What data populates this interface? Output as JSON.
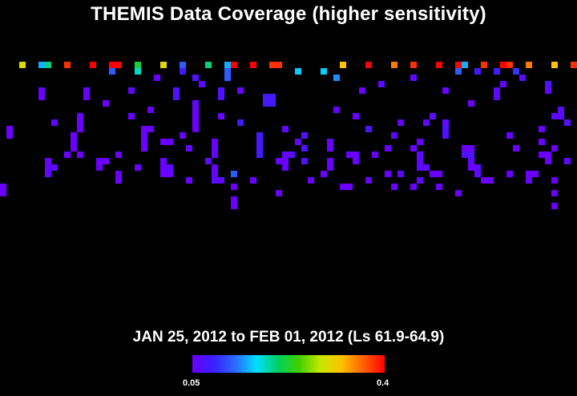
{
  "title": "THEMIS Data Coverage (higher sensitivity)",
  "date_range": "JAN 25, 2012 to FEB 01, 2012 (Ls 61.9-64.9)",
  "colorbar": {
    "min_label": "0.05",
    "max_label": "0.4",
    "min": 0.05,
    "max": 0.4,
    "colors": [
      "#6a00ff",
      "#3a20ff",
      "#2a6aff",
      "#00e0ff",
      "#00d060",
      "#40d000",
      "#c8e800",
      "#ffc000",
      "#ff6000",
      "#ff0000"
    ]
  },
  "chart_data": {
    "type": "heatmap",
    "grid": {
      "cols": 90,
      "rows": 33,
      "col_width": 8,
      "row_height": 8
    },
    "value_range": [
      0.05,
      0.4
    ],
    "cells": [
      [
        3,
        10,
        0.3
      ],
      [
        6,
        10,
        0.15
      ],
      [
        7,
        10,
        0.2
      ],
      [
        10,
        10,
        0.38
      ],
      [
        14,
        10,
        0.4
      ],
      [
        17,
        10,
        0.4
      ],
      [
        18,
        10,
        0.4
      ],
      [
        21,
        10,
        0.22
      ],
      [
        25,
        10,
        0.3
      ],
      [
        28,
        10,
        0.12
      ],
      [
        32,
        10,
        0.2
      ],
      [
        35,
        10,
        0.15
      ],
      [
        36,
        10,
        0.4
      ],
      [
        39,
        10,
        0.4
      ],
      [
        42,
        10,
        0.38
      ],
      [
        43,
        10,
        0.38
      ],
      [
        53,
        10,
        0.32
      ],
      [
        57,
        10,
        0.4
      ],
      [
        61,
        10,
        0.35
      ],
      [
        64,
        10,
        0.38
      ],
      [
        68,
        10,
        0.4
      ],
      [
        71,
        10,
        0.4
      ],
      [
        72,
        10,
        0.15
      ],
      [
        75,
        10,
        0.38
      ],
      [
        78,
        10,
        0.4
      ],
      [
        79,
        10,
        0.38
      ],
      [
        82,
        10,
        0.35
      ],
      [
        86,
        10,
        0.32
      ],
      [
        89,
        10,
        0.38
      ],
      [
        17,
        11,
        0.12
      ],
      [
        21,
        11,
        0.18
      ],
      [
        28,
        11,
        0.08
      ],
      [
        35,
        11,
        0.12
      ],
      [
        46,
        11,
        0.16
      ],
      [
        50,
        11,
        0.16
      ],
      [
        71,
        11,
        0.12
      ],
      [
        74,
        11,
        0.08
      ],
      [
        77,
        11,
        0.08
      ],
      [
        80,
        11,
        0.1
      ],
      [
        24,
        12,
        0.05
      ],
      [
        30,
        12,
        0.07
      ],
      [
        35,
        12,
        0.12
      ],
      [
        52,
        12,
        0.14
      ],
      [
        64,
        12,
        0.06
      ],
      [
        81,
        12,
        0.06
      ],
      [
        31,
        13,
        0.06
      ],
      [
        59,
        13,
        0.06
      ],
      [
        78,
        13,
        0.06
      ],
      [
        85,
        13,
        0.07
      ],
      [
        6,
        14,
        0.05
      ],
      [
        13,
        14,
        0.05
      ],
      [
        20,
        14,
        0.06
      ],
      [
        27,
        14,
        0.07
      ],
      [
        34,
        14,
        0.07
      ],
      [
        37,
        14,
        0.05
      ],
      [
        56,
        14,
        0.05
      ],
      [
        69,
        14,
        0.05
      ],
      [
        77,
        14,
        0.06
      ],
      [
        85,
        14,
        0.06
      ],
      [
        6,
        15,
        0.05
      ],
      [
        13,
        15,
        0.05
      ],
      [
        27,
        15,
        0.07
      ],
      [
        34,
        15,
        0.07
      ],
      [
        41,
        15,
        0.08
      ],
      [
        42,
        15,
        0.08
      ],
      [
        77,
        15,
        0.06
      ],
      [
        16,
        16,
        0.05
      ],
      [
        30,
        16,
        0.06
      ],
      [
        41,
        16,
        0.08
      ],
      [
        42,
        16,
        0.08
      ],
      [
        73,
        16,
        0.05
      ],
      [
        23,
        17,
        0.05
      ],
      [
        30,
        17,
        0.05
      ],
      [
        52,
        17,
        0.05
      ],
      [
        87,
        17,
        0.06
      ],
      [
        12,
        18,
        0.05
      ],
      [
        20,
        18,
        0.05
      ],
      [
        30,
        18,
        0.05
      ],
      [
        34,
        18,
        0.05
      ],
      [
        55,
        18,
        0.05
      ],
      [
        67,
        18,
        0.06
      ],
      [
        86,
        18,
        0.06
      ],
      [
        87,
        18,
        0.06
      ],
      [
        8,
        19,
        0.06
      ],
      [
        12,
        19,
        0.05
      ],
      [
        30,
        19,
        0.05
      ],
      [
        37,
        19,
        0.08
      ],
      [
        62,
        19,
        0.05
      ],
      [
        66,
        19,
        0.06
      ],
      [
        69,
        19,
        0.06
      ],
      [
        88,
        19,
        0.07
      ],
      [
        1,
        20,
        0.05
      ],
      [
        12,
        20,
        0.05
      ],
      [
        22,
        20,
        0.05
      ],
      [
        23,
        20,
        0.05
      ],
      [
        30,
        20,
        0.05
      ],
      [
        44,
        20,
        0.06
      ],
      [
        57,
        20,
        0.07
      ],
      [
        69,
        20,
        0.07
      ],
      [
        84,
        20,
        0.05
      ],
      [
        1,
        21,
        0.05
      ],
      [
        11,
        21,
        0.05
      ],
      [
        22,
        21,
        0.05
      ],
      [
        28,
        21,
        0.05
      ],
      [
        40,
        21,
        0.08
      ],
      [
        47,
        21,
        0.07
      ],
      [
        61,
        21,
        0.06
      ],
      [
        69,
        21,
        0.07
      ],
      [
        79,
        21,
        0.05
      ],
      [
        11,
        22,
        0.05
      ],
      [
        22,
        22,
        0.05
      ],
      [
        25,
        22,
        0.05
      ],
      [
        26,
        22,
        0.05
      ],
      [
        33,
        22,
        0.05
      ],
      [
        40,
        22,
        0.08
      ],
      [
        46,
        22,
        0.06
      ],
      [
        51,
        22,
        0.05
      ],
      [
        65,
        22,
        0.05
      ],
      [
        84,
        22,
        0.05
      ],
      [
        11,
        23,
        0.05
      ],
      [
        22,
        23,
        0.05
      ],
      [
        29,
        23,
        0.06
      ],
      [
        33,
        23,
        0.05
      ],
      [
        40,
        23,
        0.08
      ],
      [
        47,
        23,
        0.07
      ],
      [
        51,
        23,
        0.05
      ],
      [
        60,
        23,
        0.05
      ],
      [
        64,
        23,
        0.05
      ],
      [
        72,
        23,
        0.05
      ],
      [
        73,
        23,
        0.05
      ],
      [
        80,
        23,
        0.05
      ],
      [
        86,
        23,
        0.05
      ],
      [
        10,
        24,
        0.05
      ],
      [
        12,
        24,
        0.05
      ],
      [
        18,
        24,
        0.05
      ],
      [
        33,
        24,
        0.05
      ],
      [
        40,
        24,
        0.08
      ],
      [
        44,
        24,
        0.06
      ],
      [
        45,
        24,
        0.06
      ],
      [
        54,
        24,
        0.05
      ],
      [
        55,
        24,
        0.05
      ],
      [
        58,
        24,
        0.05
      ],
      [
        65,
        24,
        0.06
      ],
      [
        72,
        24,
        0.07
      ],
      [
        73,
        24,
        0.07
      ],
      [
        84,
        24,
        0.05
      ],
      [
        85,
        24,
        0.05
      ],
      [
        7,
        25,
        0.05
      ],
      [
        15,
        25,
        0.05
      ],
      [
        16,
        25,
        0.05
      ],
      [
        25,
        25,
        0.05
      ],
      [
        32,
        25,
        0.06
      ],
      [
        43,
        25,
        0.05
      ],
      [
        44,
        25,
        0.05
      ],
      [
        47,
        25,
        0.07
      ],
      [
        51,
        25,
        0.05
      ],
      [
        55,
        25,
        0.05
      ],
      [
        65,
        25,
        0.06
      ],
      [
        73,
        25,
        0.06
      ],
      [
        85,
        25,
        0.05
      ],
      [
        88,
        25,
        0.06
      ],
      [
        7,
        26,
        0.06
      ],
      [
        8,
        26,
        0.06
      ],
      [
        15,
        26,
        0.05
      ],
      [
        21,
        26,
        0.05
      ],
      [
        25,
        26,
        0.05
      ],
      [
        26,
        26,
        0.06
      ],
      [
        33,
        26,
        0.05
      ],
      [
        44,
        26,
        0.05
      ],
      [
        51,
        26,
        0.05
      ],
      [
        65,
        26,
        0.06
      ],
      [
        66,
        26,
        0.06
      ],
      [
        73,
        26,
        0.05
      ],
      [
        74,
        26,
        0.06
      ],
      [
        7,
        27,
        0.06
      ],
      [
        18,
        27,
        0.05
      ],
      [
        25,
        27,
        0.05
      ],
      [
        26,
        27,
        0.05
      ],
      [
        33,
        27,
        0.06
      ],
      [
        36,
        27,
        0.12
      ],
      [
        50,
        27,
        0.05
      ],
      [
        60,
        27,
        0.05
      ],
      [
        62,
        27,
        0.06
      ],
      [
        67,
        27,
        0.05
      ],
      [
        68,
        27,
        0.05
      ],
      [
        74,
        27,
        0.06
      ],
      [
        79,
        27,
        0.05
      ],
      [
        82,
        27,
        0.05
      ],
      [
        83,
        27,
        0.05
      ],
      [
        18,
        28,
        0.05
      ],
      [
        29,
        28,
        0.05
      ],
      [
        33,
        28,
        0.06
      ],
      [
        34,
        28,
        0.06
      ],
      [
        39,
        28,
        0.05
      ],
      [
        48,
        28,
        0.05
      ],
      [
        57,
        28,
        0.05
      ],
      [
        65,
        28,
        0.06
      ],
      [
        75,
        28,
        0.05
      ],
      [
        76,
        28,
        0.05
      ],
      [
        82,
        28,
        0.05
      ],
      [
        86,
        28,
        0.05
      ],
      [
        0,
        29,
        0.05
      ],
      [
        36,
        29,
        0.05
      ],
      [
        53,
        29,
        0.05
      ],
      [
        54,
        29,
        0.05
      ],
      [
        61,
        29,
        0.05
      ],
      [
        64,
        29,
        0.05
      ],
      [
        68,
        29,
        0.05
      ],
      [
        0,
        30,
        0.05
      ],
      [
        43,
        30,
        0.05
      ],
      [
        71,
        30,
        0.05
      ],
      [
        86,
        30,
        0.05
      ],
      [
        36,
        31,
        0.05
      ],
      [
        36,
        32,
        0.05
      ],
      [
        86,
        32,
        0.05
      ]
    ]
  }
}
